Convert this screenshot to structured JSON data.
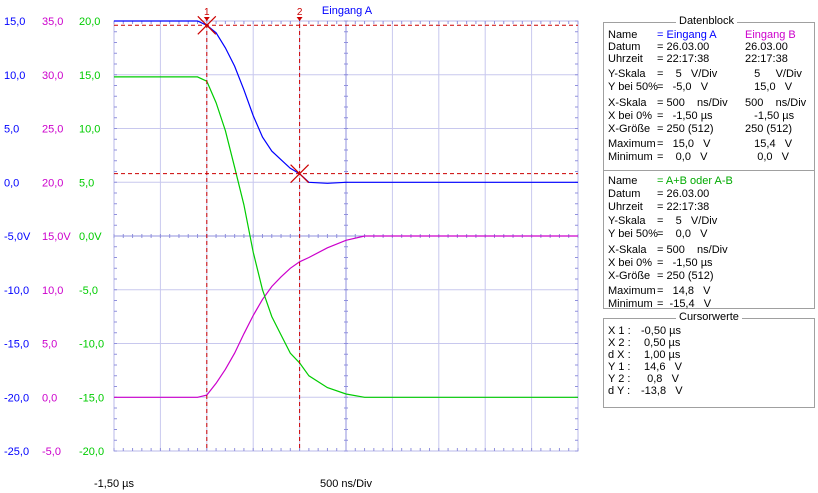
{
  "chart_data": {
    "type": "line",
    "title": "Eingang A",
    "x_start_label": "-1,50 µs",
    "x_div_label": "500 ns/Div",
    "xlim": [
      -1.5,
      3.5
    ],
    "divisions_x": 10,
    "divisions_y": 8,
    "grid": true,
    "axes": {
      "blue": {
        "color": "#0000ff",
        "ticks": [
          "15,0",
          "10,0",
          "5,0",
          "0,0",
          "-5,0V",
          "-10,0",
          "-15,0",
          "-20,0",
          "-25,0"
        ]
      },
      "magenta": {
        "color": "#cc00cc",
        "ticks": [
          "35,0",
          "30,0",
          "25,0",
          "20,0",
          "15,0V",
          "10,0",
          "5,0",
          "0,0",
          "-5,0"
        ]
      },
      "green": {
        "color": "#00cc00",
        "ticks": [
          "20,0",
          "15,0",
          "10,0",
          "5,0",
          "0,0V",
          "-5,0",
          "-10,0",
          "-15,0",
          "-20,0"
        ]
      }
    },
    "series": [
      {
        "name": "Eingang A",
        "color": "#0000ff",
        "axis": "blue",
        "x": [
          -1.5,
          -0.8,
          -0.6,
          -0.5,
          -0.4,
          -0.3,
          -0.2,
          -0.1,
          0.0,
          0.1,
          0.2,
          0.3,
          0.4,
          0.5,
          0.6,
          0.8,
          1.0,
          1.5,
          2.0,
          2.5,
          3.0,
          3.5
        ],
        "y": [
          15.0,
          15.0,
          15.0,
          14.6,
          13.9,
          12.5,
          10.8,
          8.6,
          6.2,
          4.2,
          2.9,
          2.1,
          1.3,
          0.8,
          0.0,
          -0.1,
          0.0,
          0.0,
          0.0,
          0.0,
          0.0,
          0.0
        ]
      },
      {
        "name": "Eingang B",
        "color": "#cc00cc",
        "axis": "magenta",
        "x": [
          -1.5,
          -0.8,
          -0.6,
          -0.5,
          -0.4,
          -0.3,
          -0.2,
          -0.1,
          0.0,
          0.1,
          0.2,
          0.3,
          0.4,
          0.5,
          0.6,
          0.8,
          1.0,
          1.2,
          1.5,
          2.0,
          2.5,
          3.0,
          3.5
        ],
        "y": [
          0.0,
          0.0,
          0.0,
          0.2,
          1.3,
          2.6,
          4.1,
          5.9,
          7.6,
          9.1,
          10.3,
          11.2,
          12.0,
          12.6,
          13.0,
          13.9,
          14.6,
          15.0,
          15.0,
          15.0,
          15.0,
          15.0,
          15.0
        ]
      },
      {
        "name": "A+B oder A-B",
        "color": "#00cc00",
        "axis": "green",
        "x": [
          -1.5,
          -0.8,
          -0.6,
          -0.5,
          -0.4,
          -0.3,
          -0.2,
          -0.1,
          0.0,
          0.1,
          0.2,
          0.3,
          0.4,
          0.5,
          0.6,
          0.8,
          1.0,
          1.2,
          1.5,
          2.0,
          2.5,
          3.0,
          3.5
        ],
        "y": [
          14.8,
          14.8,
          14.8,
          14.4,
          12.4,
          9.8,
          6.4,
          2.9,
          -1.5,
          -5.0,
          -7.5,
          -9.2,
          -10.9,
          -11.8,
          -13.0,
          -14.1,
          -14.7,
          -15.0,
          -15.0,
          -15.0,
          -15.0,
          -15.0,
          -15.0
        ]
      }
    ],
    "cursors": [
      {
        "label": "1",
        "x": -0.5,
        "y": 14.6
      },
      {
        "label": "2",
        "x": 0.5,
        "y": 0.8
      }
    ]
  },
  "datenblock": {
    "title": "Datenblock",
    "a": {
      "labels": [
        "Name",
        "Datum",
        "Uhrzeit",
        "Y-Skala",
        "Y bei 50%",
        "X-Skala",
        "X bei 0%",
        "X-Größe",
        "Maximum",
        "Minimum"
      ],
      "values": [
        "= Eingang A",
        "= 26.03.00",
        "= 22:17:38",
        "=    5   V/Div",
        "=   -5,0   V",
        "= 500    ns/Div",
        "=   -1,50 µs",
        "= 250 (512)",
        "=   15,0   V",
        "=    0,0   V"
      ]
    },
    "b": {
      "values": [
        "Eingang B",
        "26.03.00",
        "22:17:38",
        "   5     V/Div",
        "   15,0   V",
        "500    ns/Div",
        "   -1,50 µs",
        "250 (512)",
        "   15,4   V",
        "    0,0   V"
      ]
    },
    "ab": {
      "labels": [
        "Name",
        "Datum",
        "Uhrzeit",
        "Y-Skala",
        "Y bei 50%",
        "X-Skala",
        "X bei 0%",
        "X-Größe",
        "Maximum",
        "Minimum"
      ],
      "values": [
        "= A+B oder A-B",
        "= 26.03.00",
        "= 22:17:38",
        "=    5   V/Div",
        "=    0,0   V",
        "= 500    ns/Div",
        "=   -1,50 µs",
        "= 250 (512)",
        "=   14,8   V",
        "=  -15,4   V"
      ]
    }
  },
  "cursorwerte": {
    "title": "Cursorwerte",
    "rows": [
      {
        "label": "X 1 :",
        "value": "-0,50 µs"
      },
      {
        "label": "X 2 :",
        "value": " 0,50 µs"
      },
      {
        "label": "d X :",
        "value": " 1,00 µs"
      },
      {
        "label": "Y 1 :",
        "value": " 14,6   V"
      },
      {
        "label": "Y 2 :",
        "value": "  0,8   V"
      },
      {
        "label": "d Y :",
        "value": "-13,8   V"
      }
    ]
  }
}
